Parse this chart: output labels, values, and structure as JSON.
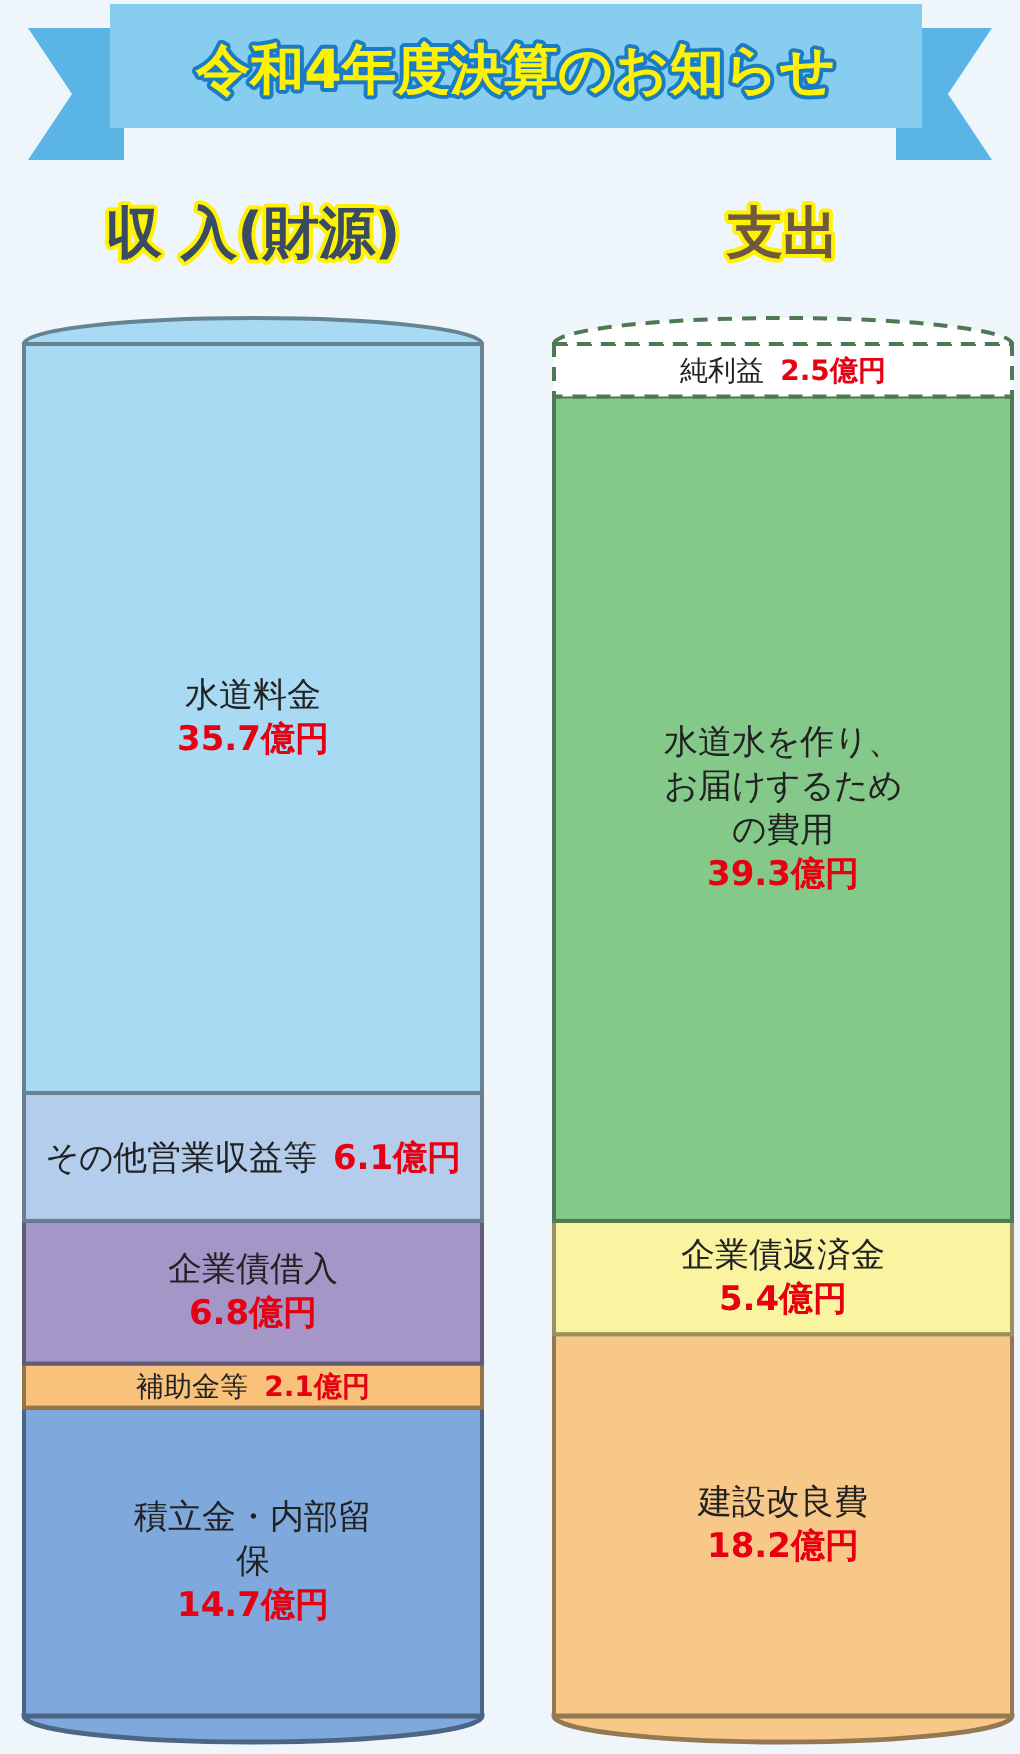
{
  "chart_data": {
    "type": "bar",
    "stacked": true,
    "title": "令和4年度決算のお知らせ",
    "categories": [
      "収 入(財源)",
      "支出"
    ],
    "series": [
      {
        "name": "積立金・内部留保",
        "color": "#7fa8dc",
        "values": [
          14.7,
          null
        ],
        "value_labels": [
          "14.7億円",
          null
        ]
      },
      {
        "name": "補助金等",
        "color": "#f9c27a",
        "values": [
          2.1,
          null
        ],
        "value_labels": [
          "2.1億円",
          null
        ]
      },
      {
        "name": "企業債借入",
        "color": "#a596c8",
        "values": [
          6.8,
          null
        ],
        "value_labels": [
          "6.8億円",
          null
        ]
      },
      {
        "name": "その他営業収益等",
        "color": "#b4cdec",
        "values": [
          6.1,
          null
        ],
        "value_labels": [
          "6.1億円",
          null
        ]
      },
      {
        "name": "水道料金",
        "color": "#a9daf4",
        "values": [
          35.7,
          null
        ],
        "value_labels": [
          "35.7億円",
          null
        ]
      },
      {
        "name": "建設改良費",
        "color": "#f8c888",
        "values": [
          null,
          18.2
        ],
        "value_labels": [
          null,
          "18.2億円"
        ]
      },
      {
        "name": "企業債返済金",
        "color": "#faf3a0",
        "values": [
          null,
          5.4
        ],
        "value_labels": [
          null,
          "5.4億円"
        ]
      },
      {
        "name": "水道水を作り、お届けするための費用",
        "color": "#84c98a",
        "values": [
          null,
          39.3
        ],
        "value_labels": [
          null,
          "39.3億円"
        ]
      },
      {
        "name": "純利益",
        "color": "#ffffff",
        "line_style": "dashed",
        "values": [
          null,
          2.5
        ],
        "value_labels": [
          null,
          "2.5億円"
        ]
      }
    ]
  }
}
